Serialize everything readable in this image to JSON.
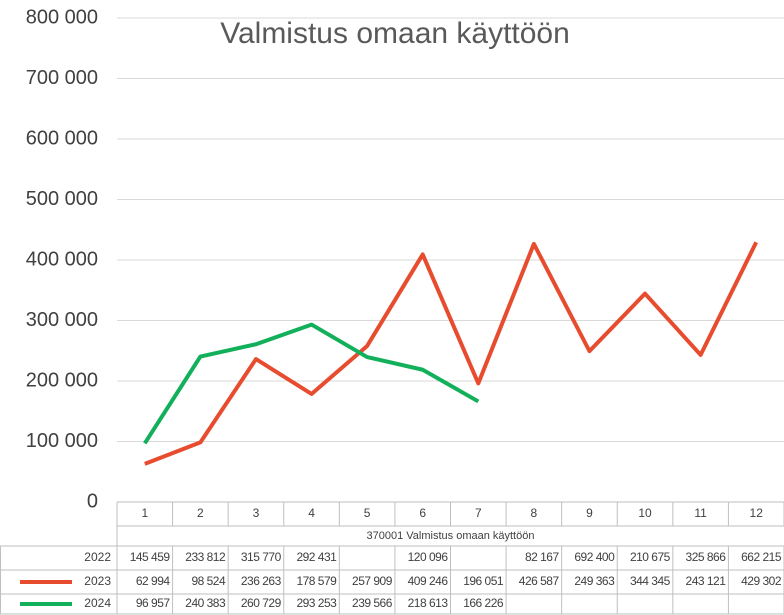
{
  "chart_data": {
    "type": "line",
    "title": "Valmistus omaan käyttöön",
    "x_label": "370001 Valmistus omaan käyttöön",
    "categories": [
      "1",
      "2",
      "3",
      "4",
      "5",
      "6",
      "7",
      "8",
      "9",
      "10",
      "11",
      "12"
    ],
    "ylim": [
      0,
      800000
    ],
    "yticks": [
      0,
      {
        "value": 100000,
        "label": "100 000"
      },
      {
        "value": 200000,
        "label": "200 000"
      },
      {
        "value": 300000,
        "label": "300 000"
      },
      {
        "value": 400000,
        "label": "400 000"
      },
      {
        "value": 500000,
        "label": "500 000"
      },
      {
        "value": 600000,
        "label": "600 000"
      },
      {
        "value": 700000,
        "label": "700 000"
      },
      {
        "value": 800000,
        "label": "800 000"
      }
    ],
    "grid": true,
    "series": [
      {
        "name": "2022",
        "values": [
          145459,
          233812,
          315770,
          292431,
          null,
          120096,
          null,
          82167,
          692400,
          210675,
          325866,
          662215
        ],
        "value_labels": [
          "145 459",
          "233 812",
          "315 770",
          "292 431",
          null,
          "120 096",
          null,
          "82 167",
          "692 400",
          "210 675",
          "325 866",
          "662 215"
        ]
      },
      {
        "name": "2023",
        "color": "#e84c2f",
        "values": [
          62994,
          98524,
          236263,
          178579,
          257909,
          409246,
          196051,
          426587,
          249363,
          344345,
          243121,
          429302
        ],
        "value_labels": [
          "62 994",
          "98 524",
          "236 263",
          "178 579",
          "257 909",
          "409 246",
          "196 051",
          "426 587",
          "249 363",
          "344 345",
          "243 121",
          "429 302"
        ]
      },
      {
        "name": "2024",
        "color": "#12b05a",
        "values": [
          96957,
          240383,
          260729,
          293253,
          239566,
          218613,
          166226,
          null,
          null,
          null,
          null,
          null
        ],
        "value_labels": [
          "96 957",
          "240 383",
          "260 729",
          "293 253",
          "239 566",
          "218 613",
          "166 226",
          null,
          null,
          null,
          null,
          null
        ]
      }
    ]
  }
}
